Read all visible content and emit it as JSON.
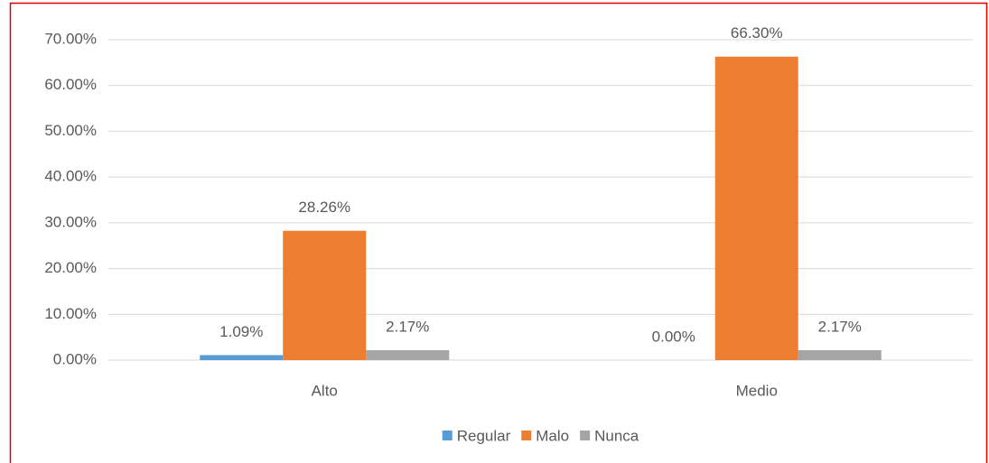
{
  "chart_data": {
    "type": "bar",
    "categories": [
      "Alto",
      "Medio"
    ],
    "series": [
      {
        "name": "Regular",
        "color": "#5b9bd5",
        "values": [
          1.09,
          0.0
        ],
        "value_labels": [
          "1.09%",
          "0.00%"
        ]
      },
      {
        "name": "Malo",
        "color": "#ed7d31",
        "values": [
          28.26,
          66.3
        ],
        "value_labels": [
          "28.26%",
          "66.30%"
        ]
      },
      {
        "name": "Nunca",
        "color": "#a5a5a5",
        "values": [
          2.17,
          2.17
        ],
        "value_labels": [
          "2.17%",
          "2.17%"
        ]
      }
    ],
    "ylim": [
      0,
      70
    ],
    "yticks": [
      {
        "value": 0,
        "label": "0.00%"
      },
      {
        "value": 10,
        "label": "10.00%"
      },
      {
        "value": 20,
        "label": "20.00%"
      },
      {
        "value": 30,
        "label": "30.00%"
      },
      {
        "value": 40,
        "label": "40.00%"
      },
      {
        "value": 50,
        "label": "50.00%"
      },
      {
        "value": 60,
        "label": "60.00%"
      },
      {
        "value": 70,
        "label": "70.00%"
      }
    ],
    "grid": true,
    "legend": "bottom"
  }
}
